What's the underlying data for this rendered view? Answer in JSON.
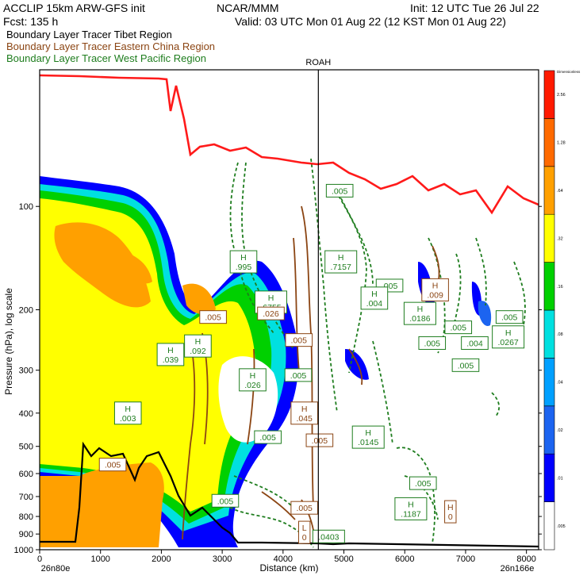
{
  "header": {
    "model": "ACCLIP 15km ARW-GFS init",
    "org": "NCAR/MMM",
    "init": "Init: 12 UTC Tue 26 Jul 22",
    "fcst": "Fcst:  135 h",
    "valid": "Valid: 03 UTC Mon 01 Aug 22 (12 KST Mon 01 Aug 22)"
  },
  "legend": [
    {
      "label": "Boundary Layer Tracer  Tibet Region",
      "color": "#000000"
    },
    {
      "label": "Boundary Layer Tracer  Eastern China Region",
      "color": "#8b4513"
    },
    {
      "label": "Boundary Layer Tracer  West Pacific Region",
      "color": "#1e7d1e"
    }
  ],
  "marker": {
    "label": "ROAH",
    "x": 4580
  },
  "colorbar": {
    "title": "Dimensionless",
    "levels": [
      ".005",
      ".01",
      ".02",
      ".04",
      ".08",
      ".16",
      ".32",
      ".64",
      "1.28",
      "2.56"
    ],
    "colors": [
      "#ffffff",
      "#0000ff",
      "#1c64f0",
      "#00a0ff",
      "#00e0e0",
      "#00d000",
      "#ffff00",
      "#ffa000",
      "#ff6a00",
      "#ff1a00"
    ]
  },
  "chart_data": {
    "type": "heatmap",
    "title": "",
    "xlabel": "Distance (km)",
    "ylabel": "Pressure (hPa), log scale",
    "x_ticks": [
      "0",
      "1000",
      "2000",
      "3000",
      "4000",
      "5000",
      "6000",
      "7000",
      "8000"
    ],
    "x_start_label": "26n80e",
    "x_end_label": "26n166e",
    "y_ticks": [
      "100",
      "200",
      "300",
      "400",
      "500",
      "600",
      "700",
      "800",
      "900",
      "1000"
    ],
    "xlim": [
      0,
      8200
    ],
    "ylim": [
      1000,
      40
    ],
    "y_scale": "log",
    "field_box_labels": [
      {
        "text": "H\n.003",
        "x": 1450,
        "p": 400,
        "color": "#1e7d1e"
      },
      {
        "text": "H\n.039",
        "x": 2150,
        "p": 270,
        "color": "#1e7d1e"
      },
      {
        "text": "H\n.092",
        "x": 2600,
        "p": 255,
        "color": "#1e7d1e"
      },
      {
        "text": ".005",
        "x": 2850,
        "p": 210,
        "color": "#8b4513"
      },
      {
        "text": "H\n.995",
        "x": 3350,
        "p": 145,
        "color": "#1e7d1e"
      },
      {
        "text": "H\n.6755",
        "x": 3800,
        "p": 190,
        "color": "#1e7d1e"
      },
      {
        "text": ".026",
        "x": 3800,
        "p": 205,
        "color": "#8b4513"
      },
      {
        "text": "H\n.026",
        "x": 3500,
        "p": 320,
        "color": "#1e7d1e"
      },
      {
        "text": ".005",
        "x": 4250,
        "p": 310,
        "color": "#1e7d1e"
      },
      {
        "text": ".005",
        "x": 4260,
        "p": 245,
        "color": "#8b4513"
      },
      {
        "text": "H\n.045",
        "x": 4350,
        "p": 400,
        "color": "#8b4513"
      },
      {
        "text": ".005",
        "x": 4600,
        "p": 480,
        "color": "#8b4513"
      },
      {
        "text": ".005",
        "x": 3750,
        "p": 470,
        "color": "#1e7d1e"
      },
      {
        "text": "H\n.7157",
        "x": 4950,
        "p": 145,
        "color": "#1e7d1e"
      },
      {
        "text": ".005",
        "x": 4930,
        "p": 90,
        "color": "#1e7d1e"
      },
      {
        "text": ".005",
        "x": 5750,
        "p": 170,
        "color": "#1e7d1e"
      },
      {
        "text": "H\n.004",
        "x": 5500,
        "p": 185,
        "color": "#1e7d1e"
      },
      {
        "text": "H\n.0145",
        "x": 5400,
        "p": 470,
        "color": "#1e7d1e"
      },
      {
        "text": "H\n.0186",
        "x": 6250,
        "p": 205,
        "color": "#1e7d1e"
      },
      {
        "text": "H\n.009",
        "x": 6500,
        "p": 175,
        "color": "#8b4513"
      },
      {
        "text": ".005",
        "x": 6450,
        "p": 250,
        "color": "#1e7d1e"
      },
      {
        "text": ".005",
        "x": 6880,
        "p": 225,
        "color": "#1e7d1e"
      },
      {
        "text": ".004",
        "x": 7150,
        "p": 250,
        "color": "#1e7d1e"
      },
      {
        "text": ".005",
        "x": 7000,
        "p": 290,
        "color": "#1e7d1e"
      },
      {
        "text": ".005",
        "x": 7720,
        "p": 210,
        "color": "#1e7d1e"
      },
      {
        "text": "H\n.0267",
        "x": 7700,
        "p": 240,
        "color": "#1e7d1e"
      },
      {
        "text": ".005",
        "x": 6300,
        "p": 640,
        "color": "#1e7d1e"
      },
      {
        "text": "H\n.1187",
        "x": 6100,
        "p": 760,
        "color": "#1e7d1e"
      },
      {
        "text": "H\n0",
        "x": 6750,
        "p": 775,
        "color": "#8b4513"
      },
      {
        "text": ".005",
        "x": 1200,
        "p": 565,
        "color": "#8b4513"
      },
      {
        "text": ".005",
        "x": 3050,
        "p": 720,
        "color": "#1e7d1e"
      },
      {
        "text": ".005",
        "x": 4350,
        "p": 755,
        "color": "#8b4513"
      },
      {
        "text": "L\n0",
        "x": 4350,
        "p": 890,
        "color": "#8b4513"
      },
      {
        "text": ".0403",
        "x": 4750,
        "p": 915,
        "color": "#1e7d1e"
      }
    ]
  }
}
